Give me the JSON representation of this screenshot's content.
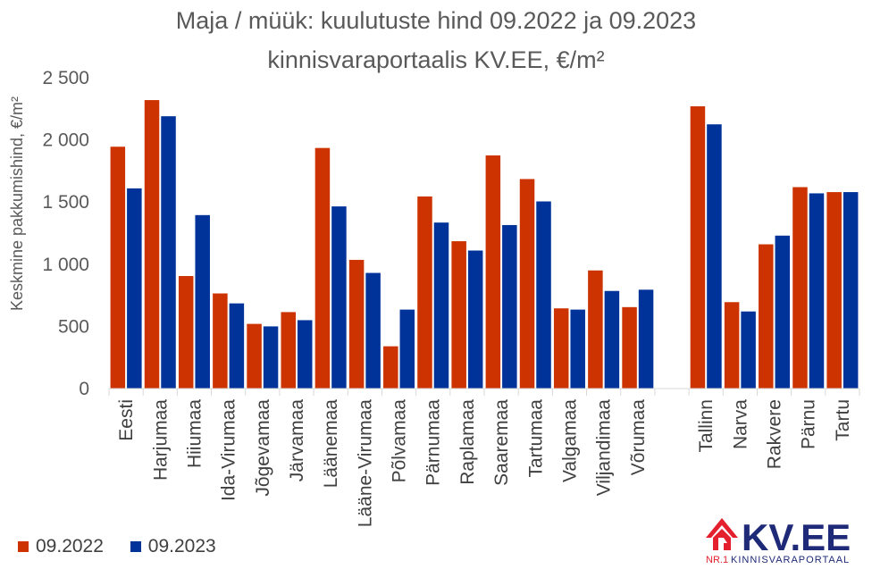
{
  "chart_data": {
    "type": "bar",
    "title": "Maja / müük: kuulutuste hind 09.2022 ja 09.2023",
    "subtitle": "kinnisvaraportaalis KV.EE, €/m²",
    "xlabel": "",
    "ylabel": "Keskmine pakkumishind, €/m²",
    "ylim": [
      0,
      2500
    ],
    "yticks": [
      0,
      500,
      1000,
      1500,
      2000,
      2500
    ],
    "ytick_labels": [
      "0",
      "500",
      "1 000",
      "1 500",
      "2 000",
      "2 500"
    ],
    "grid": false,
    "legend_position": "bottom-left",
    "categories": [
      "Eesti",
      "Harjumaa",
      "Hiiumaa",
      "Ida-Virumaa",
      "Jõgevamaa",
      "Järvamaa",
      "Läänemaa",
      "Lääne-Virumaa",
      "Põlvamaa",
      "Pärnumaa",
      "Raplamaa",
      "Saaremaa",
      "Tartumaa",
      "Valgamaa",
      "Viljandimaa",
      "Võrumaa",
      "",
      "Tallinn",
      "Narva",
      "Rakvere",
      "Pärnu",
      "Tartu"
    ],
    "series": [
      {
        "name": "09.2022",
        "color": "#CC3300",
        "values": [
          1945,
          2320,
          905,
          765,
          520,
          615,
          1935,
          1035,
          340,
          1545,
          1185,
          1875,
          1685,
          645,
          950,
          655,
          null,
          2270,
          695,
          1160,
          1620,
          1580
        ]
      },
      {
        "name": "09.2023",
        "color": "#003399",
        "values": [
          1610,
          2190,
          1395,
          685,
          500,
          550,
          1465,
          930,
          635,
          1335,
          1110,
          1315,
          1505,
          635,
          785,
          795,
          null,
          2125,
          620,
          1230,
          1570,
          1580
        ]
      }
    ]
  },
  "logo": {
    "name": "KV.EE",
    "tagline_prefix": "NR.1",
    "tagline": "KINNISVARAPORTAAL",
    "color_red": "#E5202E",
    "color_blue": "#1E2A78"
  }
}
